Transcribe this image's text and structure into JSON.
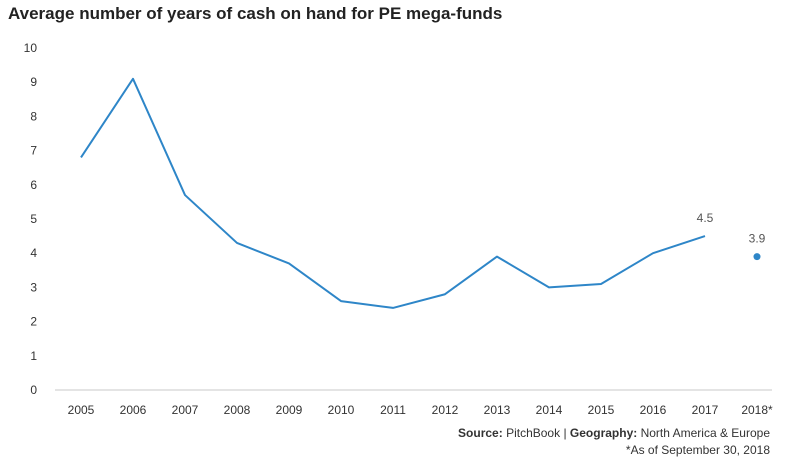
{
  "title": "Average number of years of cash on hand for PE mega-funds",
  "source": {
    "source_label": "Source:",
    "source_value": "PitchBook",
    "separator": "|",
    "geography_label": "Geography:",
    "geography_value": "North America & Europe"
  },
  "footnote": "*As of September 30, 2018",
  "colors": {
    "line": "#2E86C8",
    "axis": "#999999",
    "text": "#333333"
  },
  "chart_data": {
    "type": "line",
    "title": "Average number of years of cash on hand for PE mega-funds",
    "xlabel": "",
    "ylabel": "",
    "ylim": [
      0,
      10
    ],
    "yticks": [
      "0",
      "1",
      "2",
      "3",
      "4",
      "5",
      "6",
      "7",
      "8",
      "9",
      "10"
    ],
    "categories": [
      "2005",
      "2006",
      "2007",
      "2008",
      "2009",
      "2010",
      "2011",
      "2012",
      "2013",
      "2014",
      "2015",
      "2016",
      "2017",
      "2018*"
    ],
    "series": [
      {
        "values": [
          6.8,
          9.1,
          5.7,
          4.3,
          3.7,
          2.6,
          2.4,
          2.8,
          3.9,
          3.0,
          3.1,
          4.0,
          4.5,
          null
        ]
      },
      {
        "values": [
          null,
          null,
          null,
          null,
          null,
          null,
          null,
          null,
          null,
          null,
          null,
          null,
          null,
          3.9
        ],
        "style": "point"
      }
    ],
    "data_labels": [
      {
        "category": "2017",
        "text": "4.5"
      },
      {
        "category": "2018*",
        "text": "3.9"
      }
    ],
    "grid": false,
    "legend": "none"
  }
}
